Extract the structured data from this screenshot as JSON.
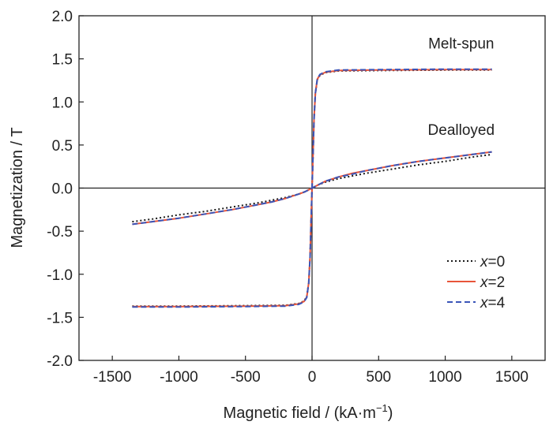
{
  "chart_data": {
    "type": "line",
    "title": "",
    "xlabel": "Magnetic field / (kA·m",
    "xlabel_sup": "−1",
    "xlabel_close": ")",
    "ylabel": "Magnetization / T",
    "xlim": [
      -1750,
      1750
    ],
    "ylim": [
      -2.0,
      2.0
    ],
    "x_ticks": [
      -1500,
      -1000,
      -500,
      0,
      500,
      1000,
      1500
    ],
    "x_tick_labels": [
      "-1500",
      "-1000",
      "-500",
      "0",
      "500",
      "1000",
      "1500"
    ],
    "y_ticks": [
      -2.0,
      -1.5,
      -1.0,
      -0.5,
      0.0,
      0.5,
      1.0,
      1.5,
      2.0
    ],
    "y_tick_labels": [
      "-2.0",
      "-1.5",
      "-1.0",
      "-0.5",
      "0.0",
      "0.5",
      "1.0",
      "1.5",
      "2.0"
    ],
    "grid": false,
    "zero_lines": true,
    "legend_position": "lower-right",
    "annotations": [
      {
        "text": "Melt-spun",
        "x": 1120,
        "y": 1.62
      },
      {
        "text": "Dealloyed",
        "x": 1120,
        "y": 0.62
      }
    ],
    "series": [
      {
        "name": "x=0",
        "name_var": "x",
        "name_val": "=0",
        "color": "#1a1a1a",
        "dash": "2,3",
        "width": 2,
        "curves": [
          {
            "x": [
              -1350,
              -1200,
              -1000,
              -800,
              -600,
              -400,
              -300,
              -200,
              -100,
              -50,
              0,
              50,
              100,
              200,
              300,
              400,
              600,
              800,
              1000,
              1200,
              1350
            ],
            "y": [
              -0.39,
              -0.36,
              -0.31,
              -0.27,
              -0.22,
              -0.17,
              -0.14,
              -0.11,
              -0.07,
              -0.04,
              0.0,
              0.04,
              0.07,
              0.11,
              0.14,
              0.17,
              0.22,
              0.27,
              0.31,
              0.36,
              0.39
            ]
          },
          {
            "x": [
              -1350,
              -1000,
              -500,
              -200,
              -100,
              -60,
              -40,
              -25,
              -15,
              -8,
              0,
              8,
              15,
              25,
              40,
              60,
              100,
              200,
              500,
              1000,
              1350
            ],
            "y": [
              -1.37,
              -1.37,
              -1.365,
              -1.36,
              -1.34,
              -1.31,
              -1.26,
              -1.1,
              -0.8,
              -0.4,
              0.0,
              0.4,
              0.8,
              1.1,
              1.26,
              1.31,
              1.34,
              1.36,
              1.365,
              1.37,
              1.37
            ]
          }
        ]
      },
      {
        "name": "x=2",
        "name_var": "x",
        "name_val": "=2",
        "color": "#e8553a",
        "dash": "",
        "width": 2,
        "curves": [
          {
            "x": [
              -1350,
              -1200,
              -1000,
              -800,
              -600,
              -400,
              -300,
              -200,
              -100,
              -50,
              0,
              50,
              100,
              200,
              300,
              400,
              600,
              800,
              1000,
              1200,
              1350
            ],
            "y": [
              -0.42,
              -0.39,
              -0.35,
              -0.3,
              -0.25,
              -0.19,
              -0.16,
              -0.12,
              -0.07,
              -0.04,
              0.0,
              0.04,
              0.08,
              0.13,
              0.17,
              0.2,
              0.26,
              0.31,
              0.35,
              0.39,
              0.42
            ]
          },
          {
            "x": [
              -1350,
              -1000,
              -500,
              -200,
              -100,
              -60,
              -40,
              -25,
              -15,
              -8,
              0,
              8,
              15,
              25,
              40,
              60,
              100,
              200,
              500,
              1000,
              1350
            ],
            "y": [
              -1.375,
              -1.375,
              -1.37,
              -1.365,
              -1.345,
              -1.315,
              -1.265,
              -1.1,
              -0.8,
              -0.4,
              0.0,
              0.4,
              0.8,
              1.1,
              1.265,
              1.315,
              1.345,
              1.365,
              1.37,
              1.375,
              1.375
            ]
          }
        ]
      },
      {
        "name": "x=4",
        "name_var": "x",
        "name_val": "=4",
        "color": "#3a55b8",
        "dash": "7,4",
        "width": 2,
        "curves": [
          {
            "x": [
              -1350,
              -1200,
              -1000,
              -800,
              -600,
              -400,
              -300,
              -200,
              -100,
              -50,
              0,
              50,
              100,
              200,
              300,
              400,
              600,
              800,
              1000,
              1200,
              1350
            ],
            "y": [
              -0.42,
              -0.39,
              -0.35,
              -0.3,
              -0.25,
              -0.19,
              -0.16,
              -0.12,
              -0.07,
              -0.04,
              0.0,
              0.04,
              0.08,
              0.13,
              0.16,
              0.2,
              0.26,
              0.31,
              0.35,
              0.39,
              0.42
            ]
          },
          {
            "x": [
              -1350,
              -1000,
              -500,
              -200,
              -100,
              -60,
              -40,
              -25,
              -15,
              -8,
              0,
              8,
              15,
              25,
              40,
              60,
              100,
              200,
              500,
              1000,
              1350
            ],
            "y": [
              -1.38,
              -1.38,
              -1.375,
              -1.37,
              -1.35,
              -1.32,
              -1.27,
              -1.1,
              -0.8,
              -0.4,
              0.0,
              0.4,
              0.8,
              1.1,
              1.27,
              1.32,
              1.35,
              1.37,
              1.375,
              1.38,
              1.38
            ]
          }
        ]
      }
    ]
  }
}
